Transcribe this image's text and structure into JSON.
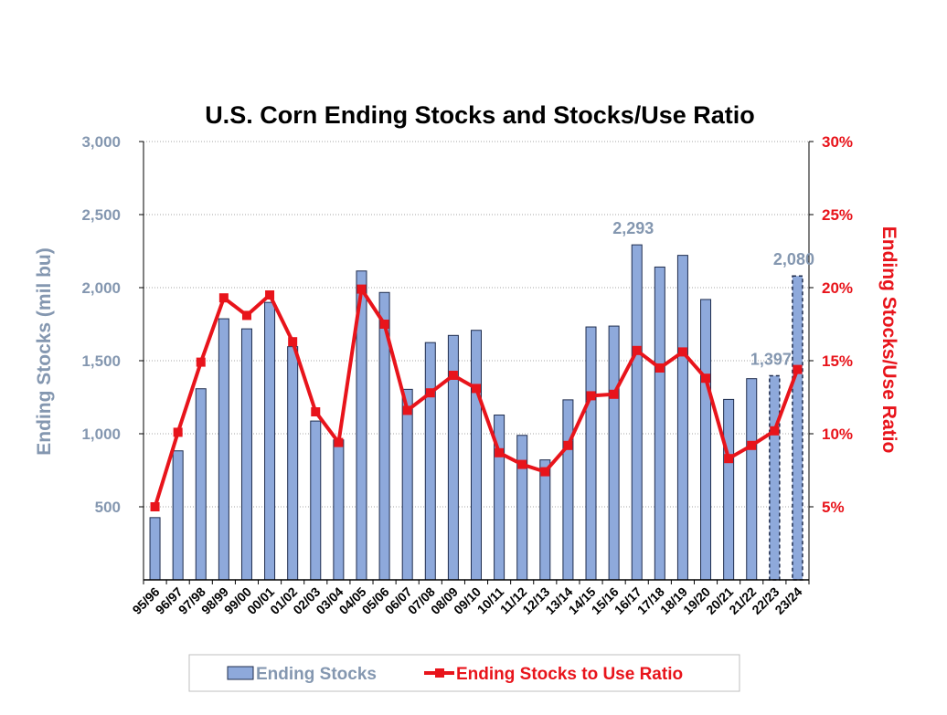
{
  "chart_data": {
    "type": "bar",
    "title": "U.S. Corn Ending Stocks and Stocks/Use Ratio",
    "ylabel": "Ending Stocks (mil bu)",
    "y2label": "Ending Stocks/Use Ratio",
    "ylim": [
      0,
      3000
    ],
    "y2lim": [
      0,
      30
    ],
    "yticks": [
      "500",
      "1,000",
      "1,500",
      "2,000",
      "2,500",
      "3,000"
    ],
    "y2ticks": [
      "5%",
      "10%",
      "15%",
      "20%",
      "25%",
      "30%"
    ],
    "grid": true,
    "legend_position": "bottom",
    "colors": {
      "bar_fill": "#8EA9DB",
      "bar_stroke": "#1F2D4E",
      "line": "#E8141B",
      "left_axis_text": "#8497B0",
      "right_axis_text": "#E8141B"
    },
    "categories": [
      "95/96",
      "96/97",
      "97/98",
      "98/99",
      "99/00",
      "00/01",
      "01/02",
      "02/03",
      "03/04",
      "04/05",
      "05/06",
      "06/07",
      "07/08",
      "08/09",
      "09/10",
      "10/11",
      "11/12",
      "12/13",
      "13/14",
      "14/15",
      "15/16",
      "16/17",
      "17/18",
      "18/19",
      "19/20",
      "20/21",
      "21/22",
      "22/23",
      "23/24"
    ],
    "series": [
      {
        "name": "Ending Stocks",
        "type": "bar",
        "axis": "left",
        "values": [
          426,
          883,
          1308,
          1787,
          1718,
          1899,
          1596,
          1087,
          958,
          2114,
          1967,
          1304,
          1624,
          1673,
          1708,
          1128,
          989,
          821,
          1232,
          1731,
          1737,
          2293,
          2141,
          2221,
          1919,
          1235,
          1377,
          1397,
          2080
        ]
      },
      {
        "name": "Ending Stocks to Use Ratio",
        "type": "line",
        "axis": "right",
        "values": [
          5.0,
          10.1,
          14.9,
          19.3,
          18.1,
          19.5,
          16.3,
          11.5,
          9.4,
          19.9,
          17.5,
          11.6,
          12.8,
          14.0,
          13.1,
          8.7,
          7.9,
          7.4,
          9.2,
          12.6,
          12.7,
          15.7,
          14.5,
          15.6,
          13.8,
          8.3,
          9.2,
          10.2,
          14.4
        ]
      }
    ],
    "projected_categories": [
      "22/23",
      "23/24"
    ],
    "annotations": [
      {
        "category": "16/17",
        "text": "2,293"
      },
      {
        "category": "22/23",
        "text": "1,397"
      },
      {
        "category": "23/24",
        "text": "2,080"
      }
    ]
  },
  "legend": {
    "bar_label": "Ending Stocks",
    "line_label": "Ending Stocks to Use Ratio"
  }
}
